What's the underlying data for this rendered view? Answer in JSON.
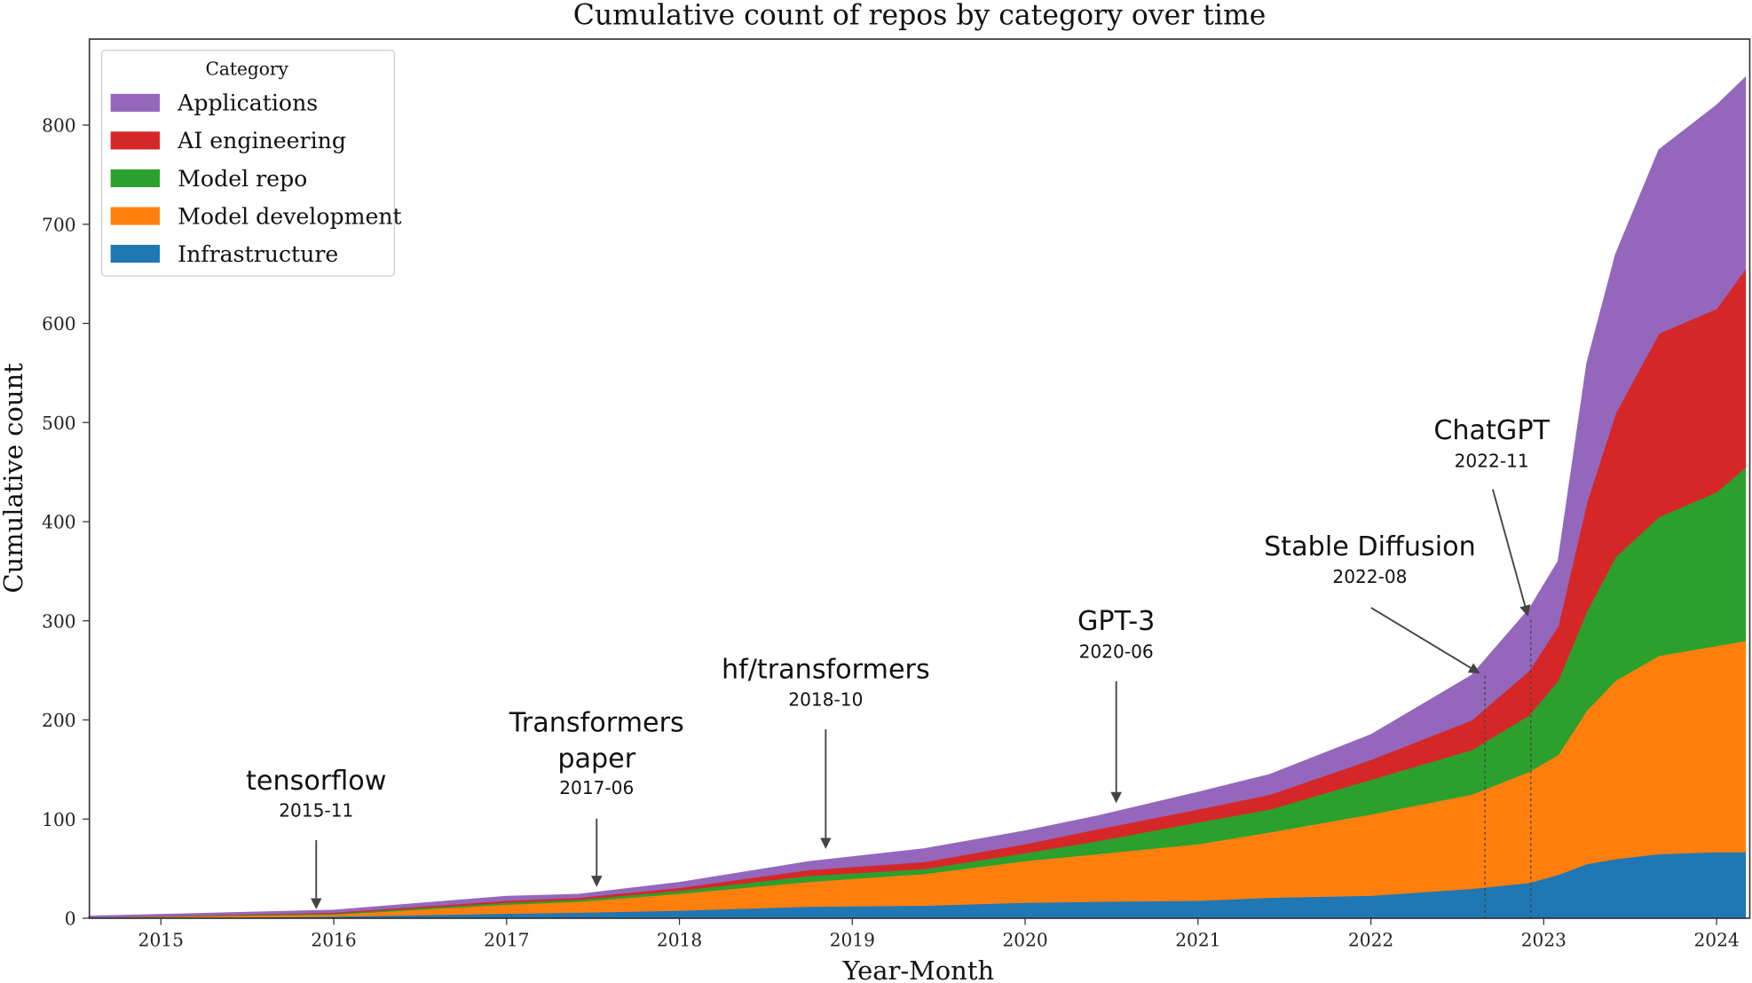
{
  "chart_data": {
    "type": "area",
    "stacked": true,
    "title": "Cumulative count of repos by category over time",
    "xlabel": "Year-Month",
    "ylabel": "Cumulative count",
    "ylim": [
      0,
      880
    ],
    "xlim": [
      "2014-08",
      "2024-03"
    ],
    "yticks": [
      0,
      100,
      200,
      300,
      400,
      500,
      600,
      700,
      800
    ],
    "xticks": [
      "2015",
      "2016",
      "2017",
      "2018",
      "2019",
      "2020",
      "2021",
      "2022",
      "2023",
      "2024"
    ],
    "grid": false,
    "legend": {
      "title": "Category",
      "placement": "top-left"
    },
    "x": [
      "2014-08",
      "2016-01",
      "2017-01",
      "2017-06",
      "2018-01",
      "2018-10",
      "2019-06",
      "2020-01",
      "2020-06",
      "2021-01",
      "2021-06",
      "2022-01",
      "2022-08",
      "2022-12",
      "2023-02",
      "2023-04",
      "2023-06",
      "2023-09",
      "2024-01",
      "2024-03"
    ],
    "series": [
      {
        "name": "Infrastructure",
        "color": "#1f77b4",
        "values": [
          0,
          2,
          5,
          6,
          8,
          12,
          13,
          16,
          17,
          18,
          21,
          23,
          30,
          36,
          44,
          55,
          60,
          65,
          67,
          67
        ]
      },
      {
        "name": "Model development",
        "color": "#ff7f0e",
        "values": [
          1,
          2,
          9,
          11,
          17,
          25,
          32,
          42,
          48,
          57,
          66,
          82,
          95,
          112,
          121,
          155,
          180,
          200,
          208,
          213
        ]
      },
      {
        "name": "Model repo",
        "color": "#2ca02c",
        "values": [
          0,
          1,
          2,
          2,
          3,
          6,
          5,
          8,
          13,
          22,
          23,
          35,
          45,
          57,
          75,
          100,
          125,
          140,
          155,
          175
        ]
      },
      {
        "name": "AI engineering",
        "color": "#d62728",
        "values": [
          0,
          1,
          2,
          2,
          3,
          6,
          7,
          9,
          12,
          13,
          15,
          20,
          30,
          45,
          55,
          110,
          145,
          185,
          185,
          200
        ]
      },
      {
        "name": "Applications",
        "color": "#9467bd",
        "values": [
          1,
          2,
          4,
          3,
          5,
          8,
          13,
          13,
          13,
          17,
          20,
          25,
          45,
          62,
          65,
          140,
          160,
          185,
          205,
          193
        ]
      }
    ],
    "annotations": [
      {
        "label": "tensorflow",
        "date": "2015-11"
      },
      {
        "label": "Transformers paper",
        "lines": [
          "Transformers",
          "paper"
        ],
        "date": "2017-06"
      },
      {
        "label": "hf/transformers",
        "date": "2018-10"
      },
      {
        "label": "GPT-3",
        "date": "2020-06"
      },
      {
        "label": "Stable Diffusion",
        "date": "2022-08"
      },
      {
        "label": "ChatGPT",
        "date": "2022-11"
      }
    ]
  }
}
